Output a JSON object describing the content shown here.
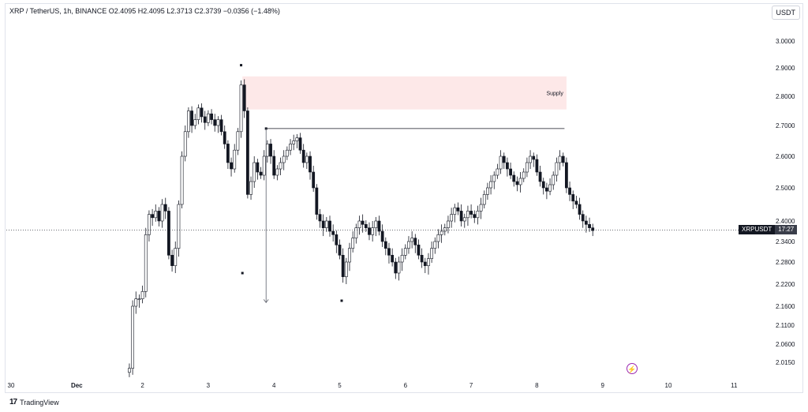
{
  "header": {
    "text": "XRP / TetherUS, 1h, BINANCE  O2.4095  H2.4095  L2.3713  C2.3739  −0.0356 (−1.48%)"
  },
  "currency_button": "USDT",
  "price_tag": {
    "symbol": "XRPUSDT",
    "countdown": "17:27"
  },
  "footer": {
    "logo_text": "17",
    "brand": "TradingView"
  },
  "colors": {
    "supply_zone": "#fde8e8",
    "candle": "#131722",
    "accent": "#9c27b0",
    "grid": "#e0e3eb"
  },
  "chart_data": {
    "type": "candlestick",
    "y_axis": {
      "ticks": [
        3.0,
        2.9,
        2.8,
        2.7,
        2.6,
        2.5,
        2.4,
        2.34,
        2.28,
        2.22,
        2.16,
        2.11,
        2.06,
        2.015
      ],
      "tick_labels": [
        "3.0000",
        "2.9000",
        "2.8000",
        "2.7000",
        "2.6000",
        "2.5000",
        "2.4000",
        "2.3400",
        "2.2800",
        "2.2200",
        "2.1600",
        "2.1100",
        "2.0600",
        "2.0150"
      ]
    },
    "x_axis": {
      "ticks": [
        0,
        1,
        2,
        3,
        4,
        5,
        6,
        7,
        8,
        9,
        10,
        11
      ],
      "tick_labels": [
        "30",
        "Dec",
        "2",
        "3",
        "4",
        "5",
        "6",
        "7",
        "8",
        "9",
        "10",
        "11"
      ]
    },
    "current_price": 2.3739,
    "annotations": [
      {
        "type": "zone",
        "label": "Supply",
        "x_from": 3.52,
        "x_to": 8.45,
        "y_from": 2.755,
        "y_to": 2.87
      },
      {
        "type": "hline",
        "x_from": 3.88,
        "x_to": 8.42,
        "y": 2.69
      },
      {
        "type": "arrow",
        "x": 3.88,
        "y_from": 2.69,
        "y_to": 2.17
      }
    ],
    "swing_markers": [
      {
        "x": 3.5,
        "y": 2.91
      },
      {
        "x": 3.52,
        "y": 2.25
      },
      {
        "x": 5.03,
        "y": 2.175
      }
    ],
    "closes": [
      [
        1.8,
        2.0
      ],
      [
        1.85,
        2.16
      ],
      [
        1.9,
        2.18
      ],
      [
        1.95,
        2.18
      ],
      [
        2.0,
        2.2
      ],
      [
        2.05,
        2.36
      ],
      [
        2.1,
        2.42
      ],
      [
        2.15,
        2.41
      ],
      [
        2.2,
        2.43
      ],
      [
        2.25,
        2.4
      ],
      [
        2.3,
        2.45
      ],
      [
        2.35,
        2.43
      ],
      [
        2.4,
        2.3
      ],
      [
        2.45,
        2.27
      ],
      [
        2.5,
        2.32
      ],
      [
        2.55,
        2.45
      ],
      [
        2.6,
        2.6
      ],
      [
        2.65,
        2.68
      ],
      [
        2.7,
        2.75
      ],
      [
        2.75,
        2.7
      ],
      [
        2.8,
        2.72
      ],
      [
        2.85,
        2.76
      ],
      [
        2.9,
        2.73
      ],
      [
        2.95,
        2.71
      ],
      [
        3.0,
        2.74
      ],
      [
        3.05,
        2.72
      ],
      [
        3.1,
        2.7
      ],
      [
        3.15,
        2.72
      ],
      [
        3.2,
        2.68
      ],
      [
        3.25,
        2.64
      ],
      [
        3.3,
        2.58
      ],
      [
        3.35,
        2.56
      ],
      [
        3.4,
        2.62
      ],
      [
        3.45,
        2.68
      ],
      [
        3.5,
        2.84
      ],
      [
        3.55,
        2.75
      ],
      [
        3.6,
        2.48
      ],
      [
        3.65,
        2.52
      ],
      [
        3.7,
        2.58
      ],
      [
        3.75,
        2.55
      ],
      [
        3.8,
        2.54
      ],
      [
        3.85,
        2.6
      ],
      [
        3.9,
        2.64
      ],
      [
        3.95,
        2.6
      ],
      [
        4.0,
        2.54
      ],
      [
        4.05,
        2.56
      ],
      [
        4.1,
        2.58
      ],
      [
        4.15,
        2.6
      ],
      [
        4.2,
        2.62
      ],
      [
        4.25,
        2.64
      ],
      [
        4.3,
        2.65
      ],
      [
        4.35,
        2.66
      ],
      [
        4.4,
        2.62
      ],
      [
        4.45,
        2.58
      ],
      [
        4.5,
        2.6
      ],
      [
        4.55,
        2.55
      ],
      [
        4.6,
        2.5
      ],
      [
        4.65,
        2.42
      ],
      [
        4.7,
        2.4
      ],
      [
        4.75,
        2.38
      ],
      [
        4.8,
        2.4
      ],
      [
        4.85,
        2.37
      ],
      [
        4.9,
        2.36
      ],
      [
        4.95,
        2.33
      ],
      [
        5.0,
        2.3
      ],
      [
        5.05,
        2.24
      ],
      [
        5.1,
        2.28
      ],
      [
        5.15,
        2.32
      ],
      [
        5.2,
        2.35
      ],
      [
        5.25,
        2.38
      ],
      [
        5.3,
        2.4
      ],
      [
        5.35,
        2.39
      ],
      [
        5.4,
        2.38
      ],
      [
        5.45,
        2.36
      ],
      [
        5.5,
        2.38
      ],
      [
        5.55,
        2.4
      ],
      [
        5.6,
        2.37
      ],
      [
        5.65,
        2.34
      ],
      [
        5.7,
        2.32
      ],
      [
        5.75,
        2.3
      ],
      [
        5.8,
        2.28
      ],
      [
        5.85,
        2.25
      ],
      [
        5.9,
        2.28
      ],
      [
        5.95,
        2.3
      ],
      [
        6.0,
        2.32
      ],
      [
        6.05,
        2.34
      ],
      [
        6.1,
        2.35
      ],
      [
        6.15,
        2.33
      ],
      [
        6.2,
        2.3
      ],
      [
        6.25,
        2.28
      ],
      [
        6.3,
        2.27
      ],
      [
        6.35,
        2.29
      ],
      [
        6.4,
        2.32
      ],
      [
        6.45,
        2.34
      ],
      [
        6.5,
        2.36
      ],
      [
        6.55,
        2.37
      ],
      [
        6.6,
        2.38
      ],
      [
        6.65,
        2.4
      ],
      [
        6.7,
        2.42
      ],
      [
        6.75,
        2.44
      ],
      [
        6.8,
        2.43
      ],
      [
        6.85,
        2.4
      ],
      [
        6.9,
        2.41
      ],
      [
        6.95,
        2.43
      ],
      [
        7.0,
        2.42
      ],
      [
        7.05,
        2.41
      ],
      [
        7.1,
        2.43
      ],
      [
        7.15,
        2.45
      ],
      [
        7.2,
        2.48
      ],
      [
        7.25,
        2.5
      ],
      [
        7.3,
        2.52
      ],
      [
        7.35,
        2.54
      ],
      [
        7.4,
        2.56
      ],
      [
        7.45,
        2.6
      ],
      [
        7.5,
        2.58
      ],
      [
        7.55,
        2.56
      ],
      [
        7.6,
        2.54
      ],
      [
        7.65,
        2.52
      ],
      [
        7.7,
        2.51
      ],
      [
        7.75,
        2.53
      ],
      [
        7.8,
        2.55
      ],
      [
        7.85,
        2.58
      ],
      [
        7.9,
        2.6
      ],
      [
        7.95,
        2.59
      ],
      [
        8.0,
        2.55
      ],
      [
        8.05,
        2.52
      ],
      [
        8.1,
        2.5
      ],
      [
        8.15,
        2.49
      ],
      [
        8.2,
        2.51
      ],
      [
        8.25,
        2.54
      ],
      [
        8.3,
        2.58
      ],
      [
        8.35,
        2.6
      ],
      [
        8.4,
        2.58
      ],
      [
        8.45,
        2.5
      ],
      [
        8.5,
        2.48
      ],
      [
        8.55,
        2.46
      ],
      [
        8.6,
        2.45
      ],
      [
        8.65,
        2.42
      ],
      [
        8.7,
        2.4
      ],
      [
        8.75,
        2.39
      ],
      [
        8.8,
        2.38
      ],
      [
        8.85,
        2.372
      ]
    ]
  }
}
